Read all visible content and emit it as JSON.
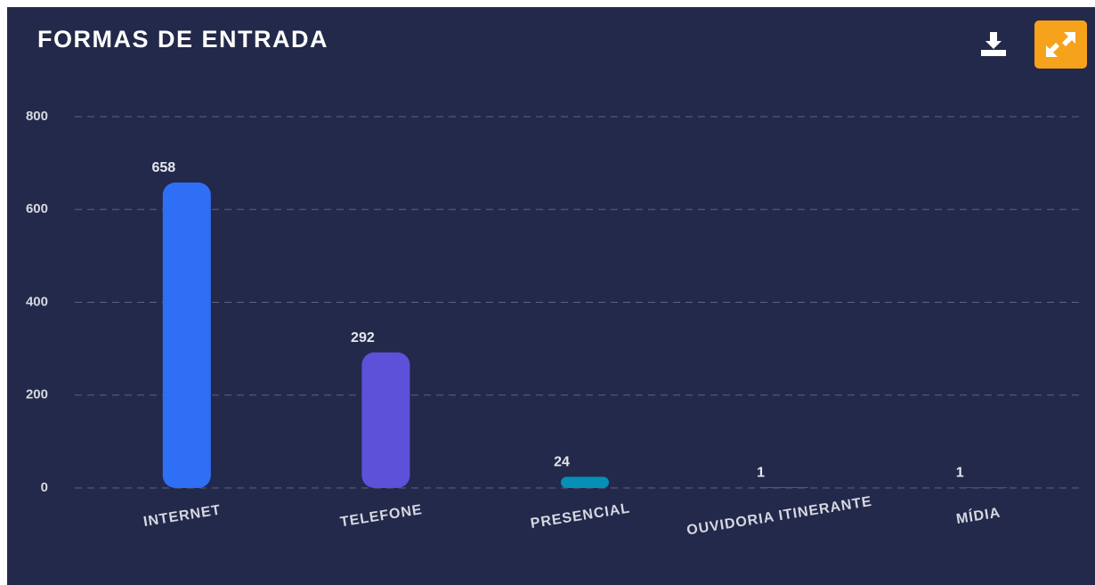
{
  "chart_data": {
    "type": "bar",
    "title": "FORMAS DE ENTRADA",
    "categories": [
      "INTERNET",
      "TELEFONE",
      "PRESENCIAL",
      "OUVIDORIA ITINERANTE",
      "MÍDIA"
    ],
    "values": [
      658,
      292,
      24,
      1,
      1
    ],
    "colors": [
      "#2f6ff6",
      "#5d51d9",
      "#0790b5",
      "#3fae6b",
      "#c0504d"
    ],
    "ylim": [
      0,
      800
    ],
    "yticks": [
      0,
      200,
      400,
      600,
      800
    ],
    "grid": true
  }
}
